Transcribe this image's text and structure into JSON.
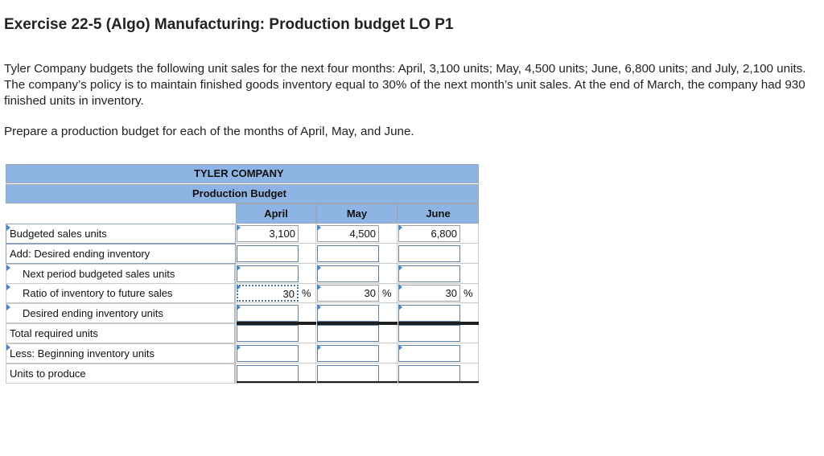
{
  "title": "Exercise 22-5 (Algo) Manufacturing: Production budget LO P1",
  "problem_text": "Tyler Company budgets the following unit sales for the next four months: April, 3,100 units; May, 4,500 units; June, 6,800 units; and July, 2,100 units. The company’s policy is to maintain finished goods inventory equal to 30% of the next month’s unit sales. At the end of March, the company had 930 finished units in inventory.",
  "prompt": "Prepare a production budget for each of the months of April, May, and June.",
  "table": {
    "company": "TYLER COMPANY",
    "statement": "Production Budget",
    "columns": [
      "April",
      "May",
      "June"
    ],
    "rows": [
      {
        "label": "Budgeted sales units",
        "values": [
          "3,100",
          "4,500",
          "6,800"
        ]
      },
      {
        "label": "Add: Desired ending inventory",
        "values": [
          "",
          "",
          ""
        ]
      },
      {
        "label": "Next period budgeted sales units",
        "values": [
          "",
          "",
          ""
        ]
      },
      {
        "label": "Ratio of inventory to future sales",
        "values": [
          "30",
          "30",
          "30"
        ],
        "suffix": "%"
      },
      {
        "label": "Desired ending inventory units",
        "values": [
          "",
          "",
          ""
        ]
      },
      {
        "label": "Total required units",
        "values": [
          "",
          "",
          ""
        ]
      },
      {
        "label": "Less: Beginning inventory units",
        "values": [
          "",
          "",
          ""
        ]
      },
      {
        "label": "Units to produce",
        "values": [
          "",
          "",
          ""
        ]
      }
    ]
  },
  "colors": {
    "header_bg": "#8eb4e3",
    "input_border": "#5b7fa6",
    "triangle": "#4a86d8"
  }
}
